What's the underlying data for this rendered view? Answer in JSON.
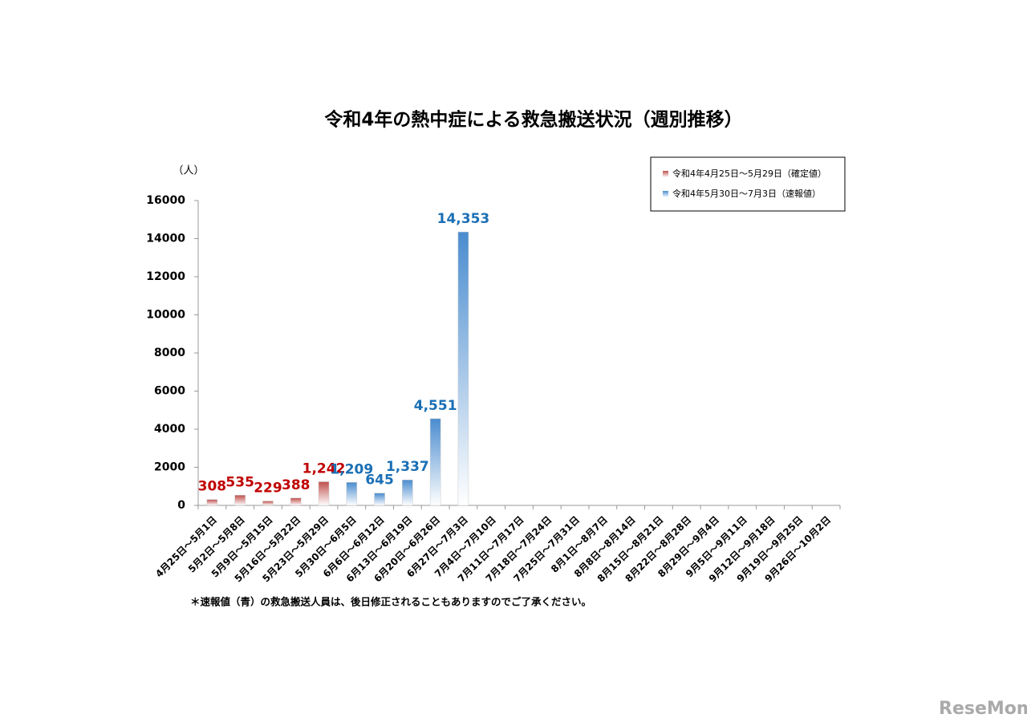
{
  "chart_data": {
    "type": "bar",
    "title": "令和4年の熱中症による救急搬送状況（週別推移）",
    "y_label": "（人）",
    "note": "＊速報値（青）の救急搬送人員は、後日修正されることもありますのでご了承ください。",
    "watermark": "ReseMom",
    "categories": [
      "4月25日～5月1日",
      "5月2日～5月8日",
      "5月9日～5月15日",
      "5月16日～5月22日",
      "5月23日～5月29日",
      "5月30日～6月5日",
      "6月6日～6月12日",
      "6月13日～6月19日",
      "6月20日～6月26日",
      "6月27日～7月3日",
      "7月4日～7月10日",
      "7月11日～7月17日",
      "7月18日～7月24日",
      "7月25日～7月31日",
      "8月1日～8月7日",
      "8月8日～8月14日",
      "8月15日～8月21日",
      "8月22日～8月28日",
      "8月29日～9月4日",
      "9月5日～9月11日",
      "9月12日～9月18日",
      "9月19日～9月25日",
      "9月26日～10月2日"
    ],
    "series": [
      {
        "name": "令和4年4月25日～5月29日（確定値）",
        "color": "#c0504d",
        "label_color": "#c00000",
        "values": [
          308,
          535,
          229,
          388,
          1242,
          null,
          null,
          null,
          null,
          null,
          null,
          null,
          null,
          null,
          null,
          null,
          null,
          null,
          null,
          null,
          null,
          null,
          null
        ],
        "value_labels": [
          null,
          null,
          null,
          null,
          "1,242",
          null,
          null,
          null,
          null,
          null,
          null,
          null,
          null,
          null,
          null,
          null,
          null,
          null,
          null,
          null,
          null,
          null,
          null
        ]
      },
      {
        "name": "令和4年5月30日～7月3日（速報値）",
        "color": "#4a8ccf",
        "label_color": "#1a6fb5",
        "values": [
          null,
          null,
          null,
          null,
          null,
          1209,
          645,
          1337,
          4551,
          14353,
          null,
          null,
          null,
          null,
          null,
          null,
          null,
          null,
          null,
          null,
          null,
          null,
          null
        ],
        "value_labels": [
          null,
          null,
          null,
          null,
          null,
          "1,209",
          null,
          "1,337",
          "4,551",
          "14,353",
          null,
          null,
          null,
          null,
          null,
          null,
          null,
          null,
          null,
          null,
          null,
          null,
          null
        ]
      }
    ],
    "ylim": [
      0,
      16000
    ],
    "yticks": [
      0,
      2000,
      4000,
      6000,
      8000,
      10000,
      12000,
      14000,
      16000
    ],
    "legend": "top-right"
  }
}
